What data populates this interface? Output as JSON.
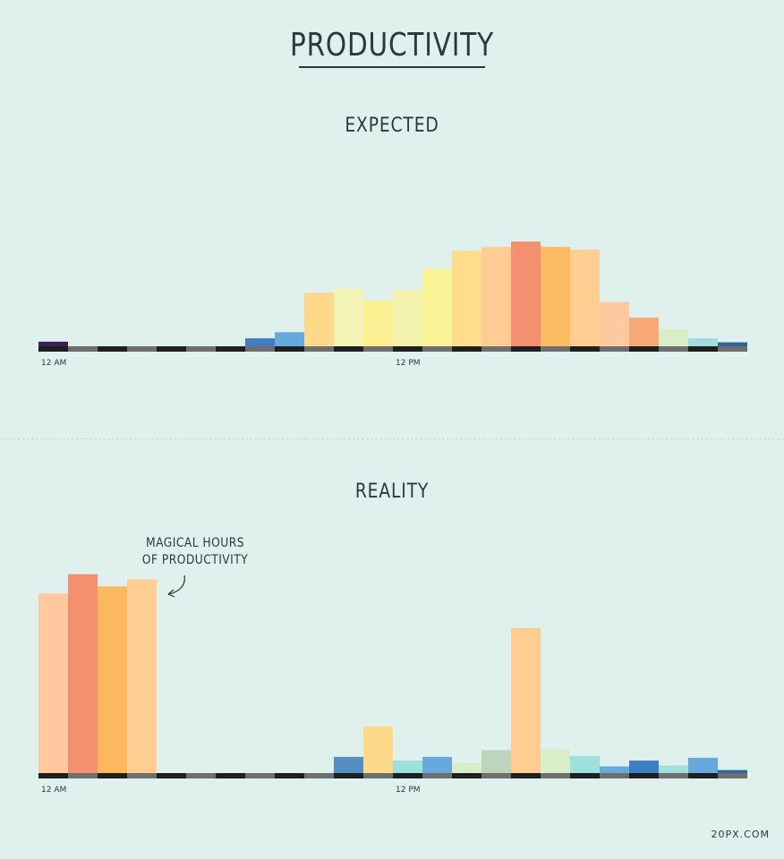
{
  "title": "PRODUCTIVITY",
  "credit": "20PX.COM",
  "annotation": {
    "line1": "MAGICAL HOURS",
    "line2": "OF PRODUCTIVITY"
  },
  "chart_data": [
    {
      "type": "bar",
      "title": "EXPECTED",
      "x_tick_labels": [
        "12 AM",
        "12 PM"
      ],
      "categories": [
        "0",
        "1",
        "2",
        "3",
        "4",
        "5",
        "6",
        "7",
        "8",
        "9",
        "10",
        "11",
        "12",
        "13",
        "14",
        "15",
        "16",
        "17",
        "18",
        "19",
        "20",
        "21",
        "22",
        "23"
      ],
      "values": [
        1.5,
        0,
        0,
        0,
        0,
        0,
        0,
        2.6,
        4.6,
        17.5,
        18.9,
        14.9,
        18.4,
        25.3,
        31.2,
        32.5,
        34.2,
        32.5,
        31.6,
        14.5,
        9.4,
        5.6,
        2.6,
        1.3
      ],
      "colors": [
        "#3c1f56",
        "#6e6e6e",
        "#6e6e6e",
        "#6e6e6e",
        "#6e6e6e",
        "#6e6e6e",
        "#6e6e6e",
        "#3f7ec0",
        "#66aadd",
        "#ffd98a",
        "#f2f3b6",
        "#fbef92",
        "#f3f2ad",
        "#faf396",
        "#ffdd8d",
        "#ffcd93",
        "#f48f6f",
        "#fdbc63",
        "#ffcd91",
        "#fdc9a0",
        "#f9a976",
        "#d8eec8",
        "#a2dcdc",
        "#2f6597"
      ],
      "ylim": [
        0,
        40
      ]
    },
    {
      "type": "bar",
      "title": "REALITY",
      "x_tick_labels": [
        "12 AM",
        "12 PM"
      ],
      "categories": [
        "0",
        "1",
        "2",
        "3",
        "4",
        "5",
        "6",
        "7",
        "8",
        "9",
        "10",
        "11",
        "12",
        "13",
        "14",
        "15",
        "16",
        "17",
        "18",
        "19",
        "20",
        "21",
        "22",
        "23"
      ],
      "values": [
        58.7,
        65,
        61,
        63.3,
        0,
        0,
        0,
        0,
        0,
        0,
        5.3,
        15.3,
        4.1,
        5.3,
        3.4,
        7.5,
        47.4,
        7.8,
        5.6,
        2.2,
        4.1,
        2.5,
        5,
        1
      ],
      "colors": [
        "#ffc89f",
        "#f48f6f",
        "#fdb85e",
        "#ffcd91",
        "#6e6e6e",
        "#6e6e6e",
        "#6e6e6e",
        "#6e6e6e",
        "#6e6e6e",
        "#6e6e6e",
        "#568ec0",
        "#ffd98a",
        "#9ee0dc",
        "#66aadd",
        "#d8eec8",
        "#bcd6bd",
        "#ffcd91",
        "#d8eec8",
        "#9ee0dc",
        "#66aadd",
        "#3f7ec0",
        "#a6dedc",
        "#66aadd",
        "#2f6597"
      ],
      "ylim": [
        0,
        70
      ]
    }
  ]
}
